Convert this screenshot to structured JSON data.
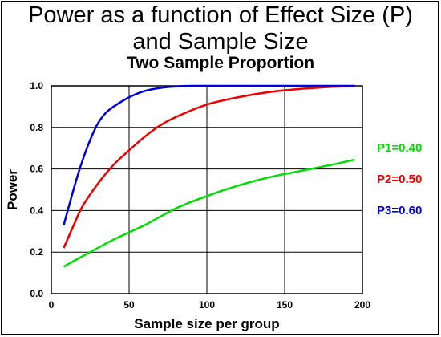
{
  "chart_data": {
    "type": "line",
    "title_line1": "Power as a function of Effect Size (P)",
    "title_line2": "and Sample Size",
    "subtitle": "Two Sample Proportion",
    "xlabel": "Sample size per group",
    "ylabel": "Power",
    "xlim": [
      0,
      200
    ],
    "ylim": [
      0.0,
      1.0
    ],
    "x_ticks": [
      "0",
      "50",
      "100",
      "150",
      "200"
    ],
    "y_ticks": [
      "0.0",
      "0.2",
      "0.4",
      "0.6",
      "0.8",
      "1.0"
    ],
    "grid": true,
    "legend_position": "right",
    "series": [
      {
        "name": "P1=0.40",
        "color": "#00dd00",
        "x": [
          8,
          20,
          40,
          60,
          80,
          100,
          120,
          140,
          160,
          180,
          195
        ],
        "y": [
          0.13,
          0.18,
          0.26,
          0.33,
          0.41,
          0.47,
          0.52,
          0.56,
          0.59,
          0.62,
          0.645
        ]
      },
      {
        "name": "P2=0.50",
        "color": "#ee0000",
        "x": [
          8,
          15,
          20,
          30,
          40,
          50,
          60,
          70,
          80,
          100,
          120,
          140,
          160,
          180,
          195
        ],
        "y": [
          0.22,
          0.34,
          0.42,
          0.53,
          0.62,
          0.69,
          0.755,
          0.81,
          0.85,
          0.91,
          0.945,
          0.97,
          0.985,
          0.995,
          1.0
        ]
      },
      {
        "name": "P3=0.60",
        "color": "#0000dd",
        "x": [
          8,
          15,
          20,
          25,
          30,
          35,
          40,
          50,
          60,
          70,
          80,
          90,
          100,
          120,
          150,
          195
        ],
        "y": [
          0.33,
          0.52,
          0.64,
          0.74,
          0.82,
          0.87,
          0.9,
          0.945,
          0.975,
          0.99,
          0.997,
          1.0,
          1.0,
          1.0,
          1.0,
          1.0
        ]
      }
    ]
  }
}
